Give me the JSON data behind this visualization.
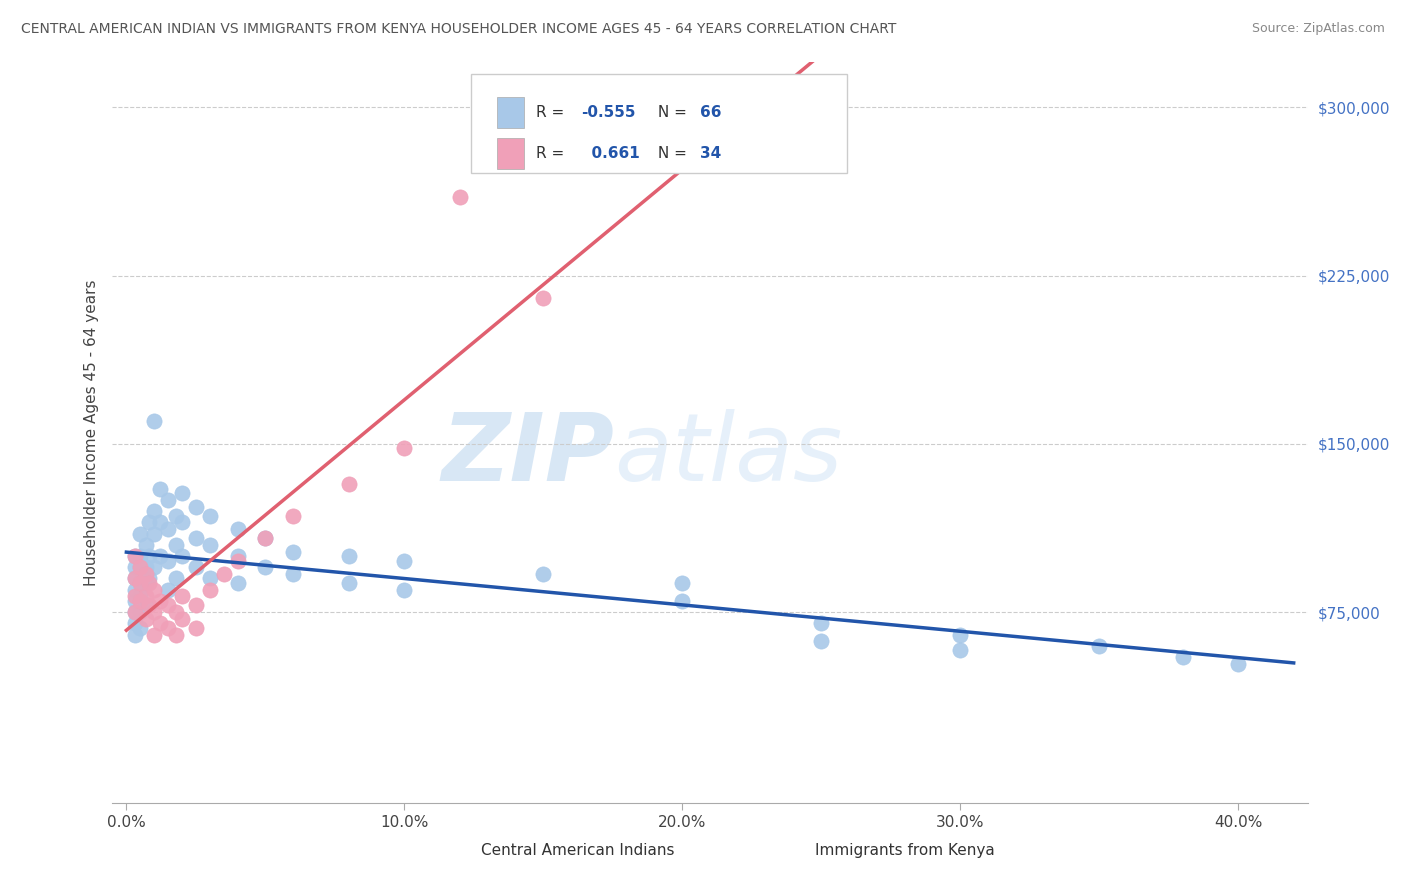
{
  "title": "CENTRAL AMERICAN INDIAN VS IMMIGRANTS FROM KENYA HOUSEHOLDER INCOME AGES 45 - 64 YEARS CORRELATION CHART",
  "source": "Source: ZipAtlas.com",
  "ylabel": "Householder Income Ages 45 - 64 years",
  "xlabel_ticks": [
    "0.0%",
    "10.0%",
    "20.0%",
    "30.0%",
    "40.0%"
  ],
  "xlabel_vals": [
    0.0,
    0.1,
    0.2,
    0.3,
    0.4
  ],
  "ytick_labels": [
    "$75,000",
    "$150,000",
    "$225,000",
    "$300,000"
  ],
  "ytick_vals": [
    75000,
    150000,
    225000,
    300000
  ],
  "xlim": [
    -0.005,
    0.425
  ],
  "ylim": [
    -10000,
    320000
  ],
  "R_blue": -0.555,
  "N_blue": 66,
  "R_pink": 0.661,
  "N_pink": 34,
  "blue_color": "#a8c8e8",
  "pink_color": "#f0a0b8",
  "blue_line_color": "#2255aa",
  "pink_line_color": "#e06070",
  "dashed_line_color": "#f0a0b8",
  "watermark_zip": "ZIP",
  "watermark_atlas": "atlas",
  "legend_label_blue": "Central American Indians",
  "legend_label_pink": "Immigrants from Kenya",
  "blue_scatter": [
    [
      0.003,
      100000
    ],
    [
      0.003,
      95000
    ],
    [
      0.003,
      90000
    ],
    [
      0.003,
      85000
    ],
    [
      0.003,
      80000
    ],
    [
      0.003,
      75000
    ],
    [
      0.003,
      70000
    ],
    [
      0.003,
      65000
    ],
    [
      0.005,
      110000
    ],
    [
      0.005,
      100000
    ],
    [
      0.005,
      95000
    ],
    [
      0.005,
      88000
    ],
    [
      0.005,
      82000
    ],
    [
      0.005,
      75000
    ],
    [
      0.005,
      68000
    ],
    [
      0.007,
      105000
    ],
    [
      0.007,
      95000
    ],
    [
      0.007,
      88000
    ],
    [
      0.007,
      78000
    ],
    [
      0.008,
      115000
    ],
    [
      0.008,
      100000
    ],
    [
      0.008,
      90000
    ],
    [
      0.01,
      160000
    ],
    [
      0.01,
      120000
    ],
    [
      0.01,
      110000
    ],
    [
      0.01,
      95000
    ],
    [
      0.012,
      130000
    ],
    [
      0.012,
      115000
    ],
    [
      0.012,
      100000
    ],
    [
      0.015,
      125000
    ],
    [
      0.015,
      112000
    ],
    [
      0.015,
      98000
    ],
    [
      0.015,
      85000
    ],
    [
      0.018,
      118000
    ],
    [
      0.018,
      105000
    ],
    [
      0.018,
      90000
    ],
    [
      0.02,
      128000
    ],
    [
      0.02,
      115000
    ],
    [
      0.02,
      100000
    ],
    [
      0.025,
      122000
    ],
    [
      0.025,
      108000
    ],
    [
      0.025,
      95000
    ],
    [
      0.03,
      118000
    ],
    [
      0.03,
      105000
    ],
    [
      0.03,
      90000
    ],
    [
      0.04,
      112000
    ],
    [
      0.04,
      100000
    ],
    [
      0.04,
      88000
    ],
    [
      0.05,
      108000
    ],
    [
      0.05,
      95000
    ],
    [
      0.06,
      102000
    ],
    [
      0.06,
      92000
    ],
    [
      0.08,
      100000
    ],
    [
      0.08,
      88000
    ],
    [
      0.1,
      98000
    ],
    [
      0.1,
      85000
    ],
    [
      0.15,
      92000
    ],
    [
      0.2,
      88000
    ],
    [
      0.2,
      80000
    ],
    [
      0.25,
      70000
    ],
    [
      0.25,
      62000
    ],
    [
      0.3,
      65000
    ],
    [
      0.3,
      58000
    ],
    [
      0.35,
      60000
    ],
    [
      0.38,
      55000
    ],
    [
      0.4,
      52000
    ]
  ],
  "pink_scatter": [
    [
      0.003,
      100000
    ],
    [
      0.003,
      90000
    ],
    [
      0.003,
      82000
    ],
    [
      0.003,
      75000
    ],
    [
      0.005,
      95000
    ],
    [
      0.005,
      88000
    ],
    [
      0.005,
      80000
    ],
    [
      0.007,
      92000
    ],
    [
      0.007,
      82000
    ],
    [
      0.007,
      72000
    ],
    [
      0.008,
      88000
    ],
    [
      0.008,
      78000
    ],
    [
      0.01,
      85000
    ],
    [
      0.01,
      75000
    ],
    [
      0.01,
      65000
    ],
    [
      0.012,
      80000
    ],
    [
      0.012,
      70000
    ],
    [
      0.015,
      78000
    ],
    [
      0.015,
      68000
    ],
    [
      0.018,
      75000
    ],
    [
      0.018,
      65000
    ],
    [
      0.02,
      82000
    ],
    [
      0.02,
      72000
    ],
    [
      0.025,
      78000
    ],
    [
      0.025,
      68000
    ],
    [
      0.03,
      85000
    ],
    [
      0.035,
      92000
    ],
    [
      0.04,
      98000
    ],
    [
      0.05,
      108000
    ],
    [
      0.06,
      118000
    ],
    [
      0.08,
      132000
    ],
    [
      0.1,
      148000
    ],
    [
      0.15,
      215000
    ],
    [
      0.12,
      260000
    ]
  ]
}
